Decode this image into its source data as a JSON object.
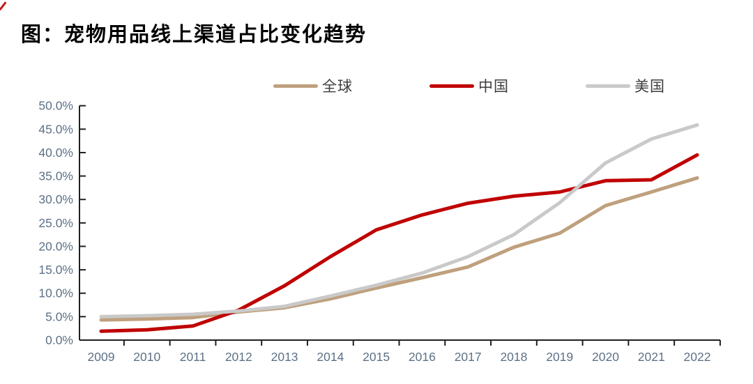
{
  "page": {
    "title": "图：宠物用品线上渠道占比变化趋势"
  },
  "legend": [
    {
      "key": "global",
      "label": "全球",
      "color": "#bfa07d"
    },
    {
      "key": "china",
      "label": "中国",
      "color": "#c00000"
    },
    {
      "key": "us",
      "label": "美国",
      "color": "#c9c9c9"
    }
  ],
  "axes": {
    "y_tick_labels": [
      "0.0%",
      "5.0%",
      "10.0%",
      "15.0%",
      "20.0%",
      "25.0%",
      "30.0%",
      "35.0%",
      "40.0%",
      "45.0%",
      "50.0%"
    ],
    "x_tick_labels": [
      "2009",
      "2010",
      "2011",
      "2012",
      "2013",
      "2014",
      "2015",
      "2016",
      "2017",
      "2018",
      "2019",
      "2020",
      "2021",
      "2022"
    ],
    "label_color": "#5d7186",
    "axis_color": "#1f1f1f"
  },
  "chart_data": {
    "type": "line",
    "title": "图：宠物用品线上渠道占比变化趋势",
    "categories": [
      2009,
      2010,
      2011,
      2012,
      2013,
      2014,
      2015,
      2016,
      2017,
      2018,
      2019,
      2020,
      2021,
      2022
    ],
    "series": [
      {
        "key": "global",
        "name": "全球",
        "color": "#bfa07d",
        "values": [
          4.3,
          4.5,
          4.8,
          6.0,
          6.9,
          8.8,
          11.1,
          13.3,
          15.6,
          19.8,
          22.8,
          28.7,
          31.6,
          34.6
        ]
      },
      {
        "key": "china",
        "name": "中国",
        "color": "#c00000",
        "values": [
          1.9,
          2.2,
          3.0,
          6.4,
          11.6,
          17.8,
          23.5,
          26.7,
          29.2,
          30.7,
          31.6,
          34.0,
          34.2,
          39.5
        ]
      },
      {
        "key": "us",
        "name": "美国",
        "color": "#c9c9c9",
        "values": [
          5.0,
          5.2,
          5.5,
          6.2,
          7.2,
          9.4,
          11.7,
          14.3,
          17.8,
          22.5,
          29.3,
          37.8,
          42.9,
          45.9
        ]
      }
    ],
    "xlabel": "",
    "ylabel": "",
    "ylim": [
      0,
      50
    ],
    "ytick_step": 5,
    "ytick_format": "percent_one_decimal",
    "legend_position": "top",
    "grid": false
  }
}
